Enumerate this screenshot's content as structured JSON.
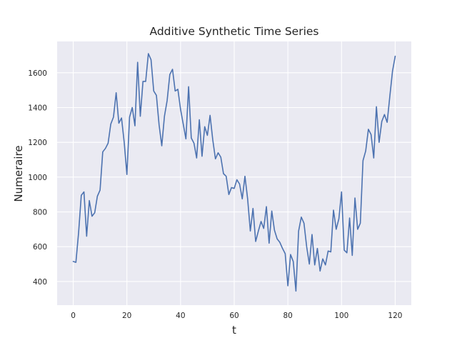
{
  "chart_data": {
    "type": "line",
    "title": "Additive Synthetic Time Series",
    "xlabel": "t",
    "ylabel": "Numeraire",
    "xlim": [
      -6,
      126
    ],
    "ylim": [
      264,
      1780
    ],
    "grid": true,
    "xticks": [
      0,
      20,
      40,
      60,
      80,
      100,
      120
    ],
    "yticks": [
      400,
      600,
      800,
      1000,
      1200,
      1400,
      1600
    ],
    "colors": {
      "background": "#eaeaf2",
      "grid": "#ffffff",
      "line": "#4c72b0",
      "text": "#262626"
    },
    "x": [
      0,
      1,
      2,
      3,
      4,
      5,
      6,
      7,
      8,
      9,
      10,
      11,
      12,
      13,
      14,
      15,
      16,
      17,
      18,
      19,
      20,
      21,
      22,
      23,
      24,
      25,
      26,
      27,
      28,
      29,
      30,
      31,
      32,
      33,
      34,
      35,
      36,
      37,
      38,
      39,
      40,
      41,
      42,
      43,
      44,
      45,
      46,
      47,
      48,
      49,
      50,
      51,
      52,
      53,
      54,
      55,
      56,
      57,
      58,
      59,
      60,
      61,
      62,
      63,
      64,
      65,
      66,
      67,
      68,
      69,
      70,
      71,
      72,
      73,
      74,
      75,
      76,
      77,
      78,
      79,
      80,
      81,
      82,
      83,
      84,
      85,
      86,
      87,
      88,
      89,
      90,
      91,
      92,
      93,
      94,
      95,
      96,
      97,
      98,
      99,
      100,
      101,
      102,
      103,
      104,
      105,
      106,
      107,
      108,
      109,
      110,
      111,
      112,
      113,
      114,
      115,
      116,
      117,
      118,
      119,
      120
    ],
    "series": [
      {
        "values": [
          515,
          510,
          680,
          895,
          915,
          660,
          865,
          775,
          795,
          890,
          925,
          1145,
          1165,
          1195,
          1305,
          1345,
          1485,
          1310,
          1340,
          1200,
          1015,
          1345,
          1400,
          1295,
          1660,
          1350,
          1550,
          1550,
          1710,
          1675,
          1495,
          1470,
          1300,
          1180,
          1350,
          1440,
          1590,
          1620,
          1495,
          1505,
          1390,
          1305,
          1220,
          1520,
          1225,
          1195,
          1110,
          1330,
          1120,
          1290,
          1240,
          1355,
          1215,
          1105,
          1140,
          1115,
          1020,
          1005,
          900,
          940,
          935,
          985,
          960,
          875,
          1005,
          875,
          690,
          820,
          630,
          690,
          745,
          705,
          830,
          620,
          805,
          695,
          645,
          625,
          590,
          560,
          375,
          555,
          515,
          345,
          690,
          770,
          735,
          600,
          500,
          670,
          495,
          590,
          460,
          530,
          495,
          575,
          570,
          810,
          700,
          760,
          915,
          580,
          565,
          765,
          550,
          880,
          700,
          735,
          1095,
          1150,
          1275,
          1245,
          1110,
          1405,
          1200,
          1320,
          1360,
          1315,
          1465,
          1610,
          1695
        ]
      }
    ]
  }
}
